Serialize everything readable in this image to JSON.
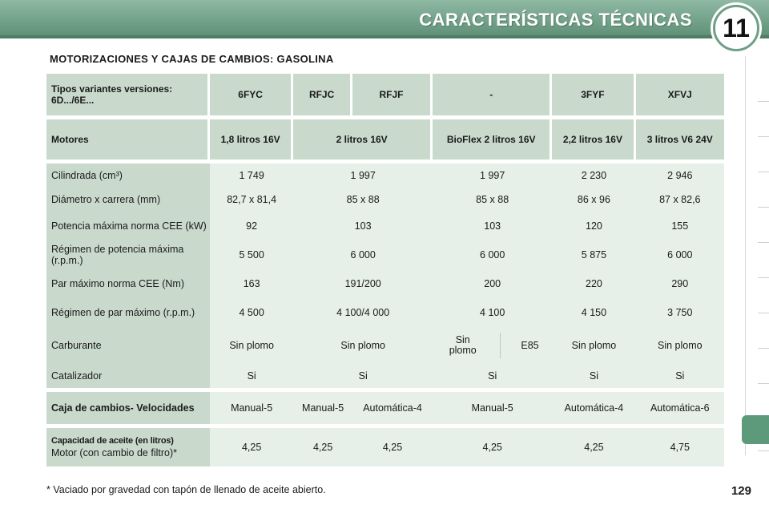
{
  "header": {
    "title": "CARACTERÍSTICAS TÉCNICAS",
    "chapter": "11"
  },
  "section_heading": "MOTORIZACIONES Y CAJAS DE CAMBIOS: GASOLINA",
  "table": {
    "versions_label": "Tipos variantes versiones: 6D.../6E...",
    "versions": [
      "6FYC",
      "RFJC",
      "RFJF",
      "-",
      "3FYF",
      "XFVJ"
    ],
    "motores_label": "Motores",
    "motores": [
      "1,8 litros 16V",
      "2 litros 16V",
      "BioFlex 2 litros 16V",
      "2,2 litros 16V",
      "3 litros V6 24V"
    ],
    "cilindrada": {
      "label": "Cilindrada (cm³)",
      "values": [
        "1 749",
        "1 997",
        "1 997",
        "2 230",
        "2 946"
      ]
    },
    "diametro": {
      "label": "Diámetro x carrera (mm)",
      "values": [
        "82,7 x 81,4",
        "85 x 88",
        "85 x 88",
        "86 x 96",
        "87 x 82,6"
      ]
    },
    "potencia": {
      "label": "Potencia máxima norma CEE (kW)",
      "values": [
        "92",
        "103",
        "103",
        "120",
        "155"
      ]
    },
    "regimen_potencia": {
      "label": "Régimen de potencia máxima (r.p.m.)",
      "values": [
        "5 500",
        "6 000",
        "6 000",
        "5 875",
        "6 000"
      ]
    },
    "par": {
      "label": "Par máximo norma CEE (Nm)",
      "values": [
        "163",
        "191/200",
        "200",
        "220",
        "290"
      ]
    },
    "regimen_par": {
      "label": "Régimen de par máximo (r.p.m.)",
      "values": [
        "4 500",
        "4 100/4 000",
        "4 100",
        "4 150",
        "3 750"
      ]
    },
    "carburante": {
      "label": "Carburante",
      "values": [
        "Sin plomo",
        "Sin plomo",
        "Sin plomo",
        "E85",
        "Sin plomo",
        "Sin plomo"
      ]
    },
    "catalizador": {
      "label": "Catalizador",
      "values": [
        "Si",
        "Si",
        "Si",
        "Si",
        "Si"
      ]
    },
    "caja": {
      "label": "Caja de cambios- Velocidades",
      "values": [
        "Manual-5",
        "Manual-5",
        "Automática-4",
        "Manual-5",
        "Automática-4",
        "Automática-6"
      ]
    },
    "aceite": {
      "title": "Capacidad de aceite (en litros)",
      "label": "Motor (con cambio de filtro)*",
      "values": [
        "4,25",
        "4,25",
        "4,25",
        "4,25",
        "4,25",
        "4,75"
      ]
    }
  },
  "footnote": "* Vaciado por gravedad con tapón de llenado de aceite abierto.",
  "page_number": "129"
}
